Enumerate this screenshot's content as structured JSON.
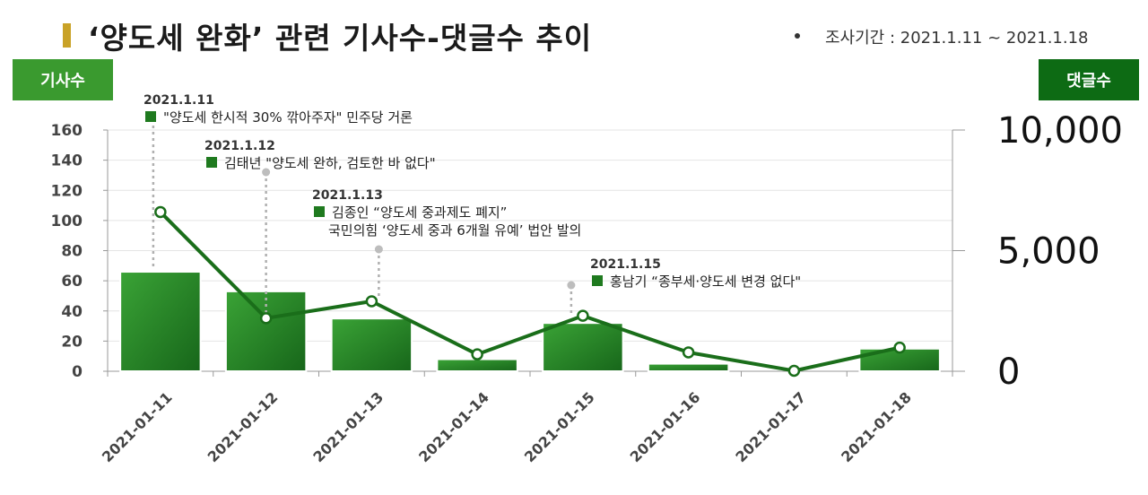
{
  "header": {
    "title": "‘양도세 완화’ 관련 기사수-댓글수 추이",
    "period": "조사기간 : 2021.1.11 ~ 2021.1.18",
    "left_axis_badge": "기사수",
    "right_axis_badge": "댓글수"
  },
  "colors": {
    "bar": "#2e8b2e",
    "line": "#1a6e1a",
    "left_badge": "#3a9a2f",
    "right_badge": "#0d6b14",
    "title_accent": "#c9a227"
  },
  "chart_data": {
    "type": "bar",
    "categories": [
      "2021-01-11",
      "2021-01-12",
      "2021-01-13",
      "2021-01-14",
      "2021-01-15",
      "2021-01-16",
      "2021-01-17",
      "2021-01-18"
    ],
    "series": [
      {
        "type": "bar",
        "axis": "left",
        "values": [
          66,
          53,
          35,
          8,
          32,
          5,
          0,
          15
        ]
      },
      {
        "type": "line",
        "axis": "right",
        "values": [
          6600,
          2200,
          2900,
          700,
          2300,
          780,
          20,
          980
        ]
      }
    ],
    "left_axis": {
      "ticks": [
        "0",
        "20",
        "40",
        "60",
        "80",
        "100",
        "120",
        "140",
        "160"
      ],
      "ylim": [
        0,
        160
      ]
    },
    "right_axis": {
      "ticks": [
        "0",
        "5,000",
        "10,000"
      ],
      "ylim": [
        0,
        10000
      ]
    },
    "grid": true,
    "annotations": [
      {
        "category": "2021-01-11",
        "date": "2021.1.11",
        "lines": [
          "\"양도세 한시적 30% 깎아주자\" 민주당 거론"
        ]
      },
      {
        "category": "2021-01-12",
        "date": "2021.1.12",
        "lines": [
          "김태년 \"양도세 완하, 검토한 바 없다\""
        ]
      },
      {
        "category": "2021-01-13",
        "date": "2021.1.13",
        "lines": [
          "김종인 “양도세 중과제도 폐지”",
          "국민의힘 ‘양도세 중과 6개월 유예’ 법안 발의"
        ]
      },
      {
        "category": "2021-01-15",
        "date": "2021.1.15",
        "lines": [
          "홍남기 “종부세·양도세 변경 없다\""
        ]
      }
    ]
  }
}
